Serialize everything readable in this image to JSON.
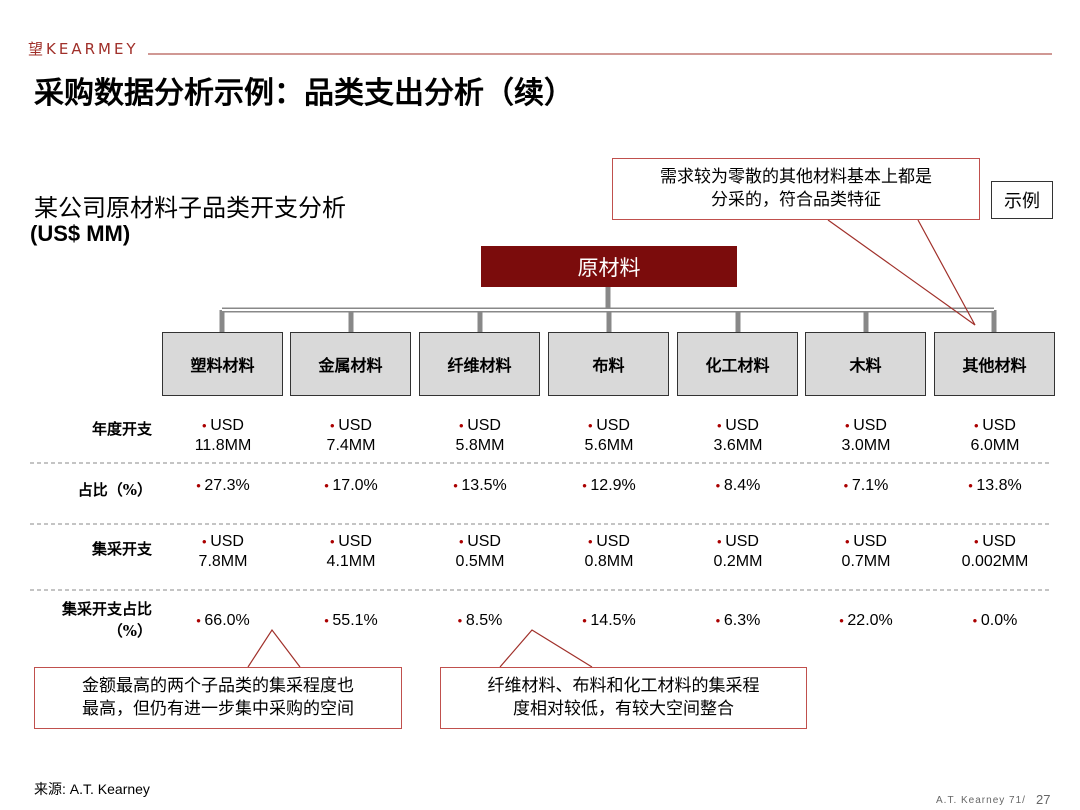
{
  "header": {
    "logo": "望KEARMEY",
    "title": "采购数据分析示例：品类支出分析（续）"
  },
  "subtitle": {
    "line1": "某公司原材料子品类开支分析",
    "line2": "(US$ MM)"
  },
  "tag": "示例",
  "callouts": [
    {
      "lines": [
        "需求较为零散的其他材料基本上都是",
        "分采的，符合品类特征"
      ]
    },
    {
      "lines": [
        "金额最高的两个子品类的集采程度也",
        "最高，但仍有进一步集中采购的空间"
      ]
    },
    {
      "lines": [
        "纤维材料、布料和化工材料的集采程",
        "度相对较低，有较大空间整合"
      ]
    }
  ],
  "tree": {
    "root": "原材料",
    "children": [
      "塑料材料",
      "金属材料",
      "纤维材料",
      "布料",
      "化工材料",
      "木料",
      "其他材料"
    ]
  },
  "table": {
    "row_labels": [
      [
        "年度开支"
      ],
      [
        "占比（%）"
      ],
      [
        "集采开支"
      ],
      [
        "集采开支占比",
        "（%）"
      ]
    ],
    "rows": [
      [
        [
          "USD",
          "11.8MM"
        ],
        [
          "USD",
          "7.4MM"
        ],
        [
          "USD",
          "5.8MM"
        ],
        [
          "USD",
          "5.6MM"
        ],
        [
          "USD",
          "3.6MM"
        ],
        [
          "USD",
          "3.0MM"
        ],
        [
          "USD",
          "6.0MM"
        ]
      ],
      [
        [
          "27.3%"
        ],
        [
          "17.0%"
        ],
        [
          "13.5%"
        ],
        [
          "12.9%"
        ],
        [
          "8.4%"
        ],
        [
          "7.1%"
        ],
        [
          "13.8%"
        ]
      ],
      [
        [
          "USD",
          "7.8MM"
        ],
        [
          "USD",
          "4.1MM"
        ],
        [
          "USD",
          "0.5MM"
        ],
        [
          "USD",
          "0.8MM"
        ],
        [
          "USD",
          "0.2MM"
        ],
        [
          "USD",
          "0.7MM"
        ],
        [
          "USD",
          "0.002MM"
        ]
      ],
      [
        [
          "66.0%"
        ],
        [
          "55.1%"
        ],
        [
          "8.5%"
        ],
        [
          "14.5%"
        ],
        [
          "6.3%"
        ],
        [
          "22.0%"
        ],
        [
          "0.0%"
        ]
      ]
    ]
  },
  "footer": {
    "source": "来源: A.T. Kearney",
    "company": "A.T. Kearney 71/",
    "page": "27"
  }
}
